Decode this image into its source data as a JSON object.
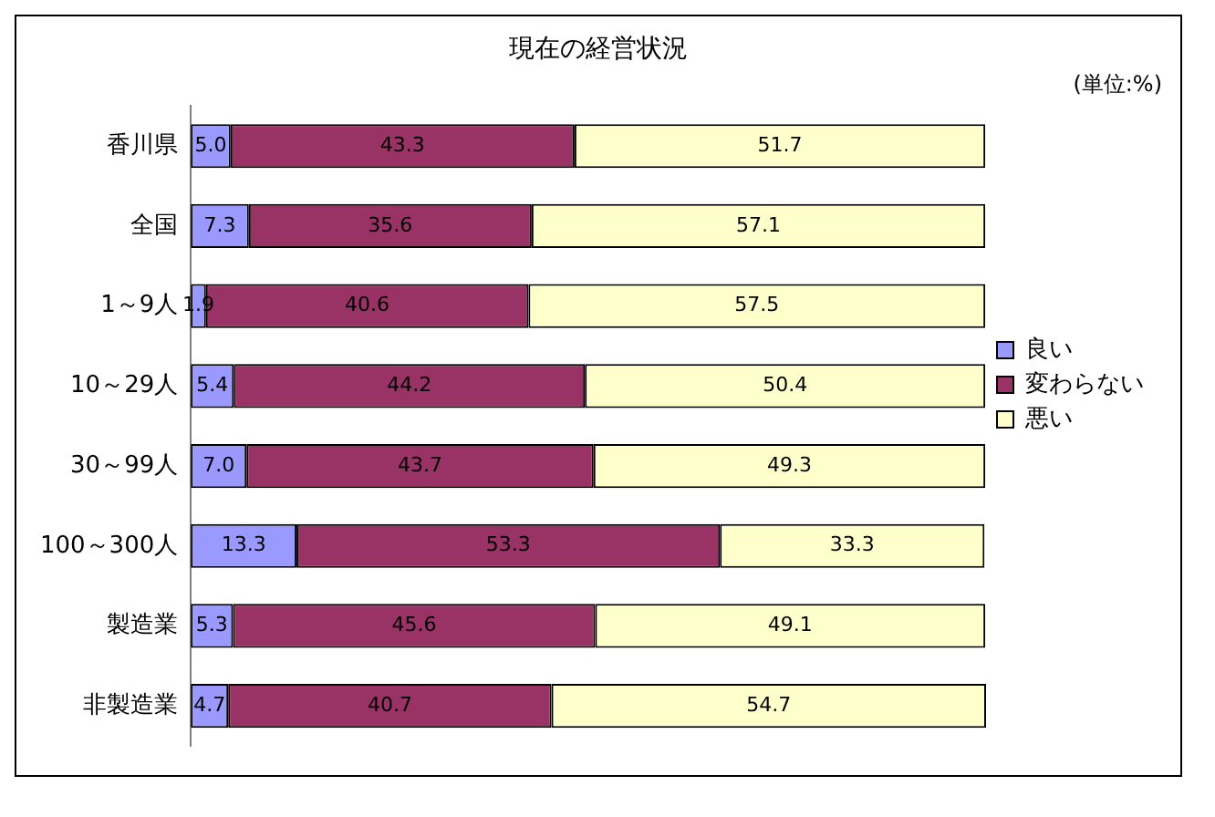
{
  "chart_data": {
    "type": "bar",
    "orientation": "horizontal",
    "stacked": true,
    "title": "現在の経営状況",
    "annotations": [
      "(単位:%)"
    ],
    "categories": [
      "香川県",
      "全国",
      "1～9人",
      "10～29人",
      "30～99人",
      "100～300人",
      "製造業",
      "非製造業"
    ],
    "series": [
      {
        "name": "良い",
        "color": "#9999ff",
        "values": [
          5.0,
          7.3,
          1.9,
          5.4,
          7.0,
          13.3,
          5.3,
          4.7
        ],
        "value_labels": [
          "5.0",
          "7.3",
          "1.9",
          "5.4",
          "7.0",
          "13.3",
          "5.3",
          "4.7"
        ]
      },
      {
        "name": "変わらない",
        "color": "#993366",
        "values": [
          43.3,
          35.6,
          40.6,
          44.2,
          43.7,
          53.3,
          45.6,
          40.7
        ]
      },
      {
        "name": "悪い",
        "color": "#ffffcc",
        "values": [
          51.7,
          57.1,
          57.5,
          50.4,
          49.3,
          33.3,
          49.1,
          54.7
        ]
      }
    ],
    "data_labels": true,
    "legend": "right",
    "grid": false,
    "tick_labels": "y"
  }
}
